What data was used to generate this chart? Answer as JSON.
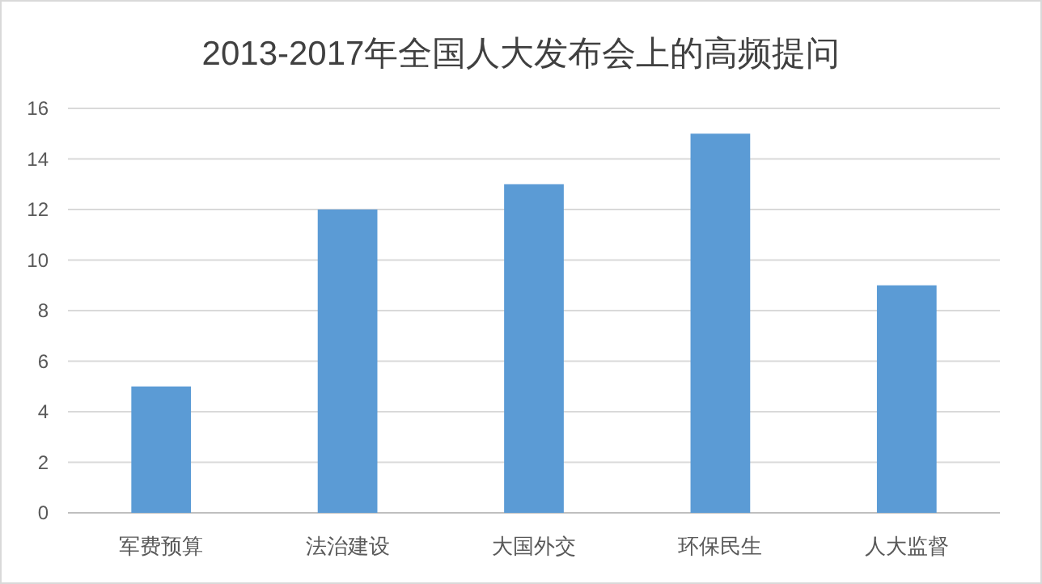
{
  "chart_data": {
    "type": "bar",
    "title": "2013-2017年全国人大发布会上的高频提问",
    "categories": [
      "军费预算",
      "法治建设",
      "大国外交",
      "环保民生",
      "人大监督"
    ],
    "values": [
      5,
      12,
      13,
      15,
      9
    ],
    "color": "#5b9bd5",
    "ylim": [
      0,
      16
    ],
    "yticks": [
      0,
      2,
      4,
      6,
      8,
      10,
      12,
      14,
      16
    ],
    "grid": "y"
  }
}
